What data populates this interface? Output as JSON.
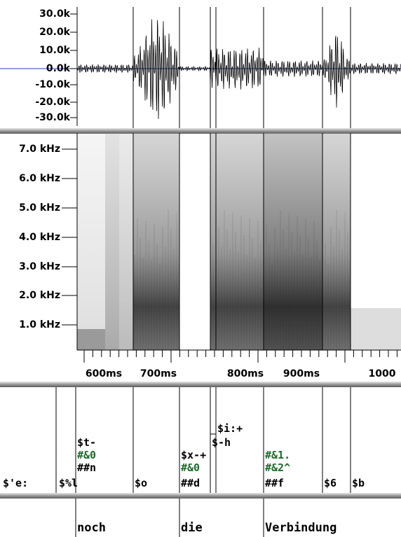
{
  "waveform": {
    "yticks": [
      "30.0k",
      "20.0k",
      "10.0k",
      "0.0k",
      "-10.0k",
      "-20.0k",
      "-30.0k"
    ]
  },
  "spectrogram": {
    "yticks": [
      "7.0 kHz",
      "6.0 kHz",
      "5.0 kHz",
      "4.0 kHz",
      "3.0 kHz",
      "2.0 kHz",
      "1.0 kHz"
    ]
  },
  "time_axis": {
    "ticks": [
      "600ms",
      "700ms",
      "800ms",
      "900ms",
      "1000"
    ]
  },
  "segments": [
    "$'e:",
    "$%l",
    "$t-",
    "#&0",
    "##n",
    "$o",
    "$x-+",
    "#&0",
    "##d",
    "$i:+",
    "$-h",
    "#&1.",
    "#&2^",
    "##f",
    "$6",
    "$b"
  ],
  "words": [
    "noch",
    "die",
    "Verbindung"
  ]
}
